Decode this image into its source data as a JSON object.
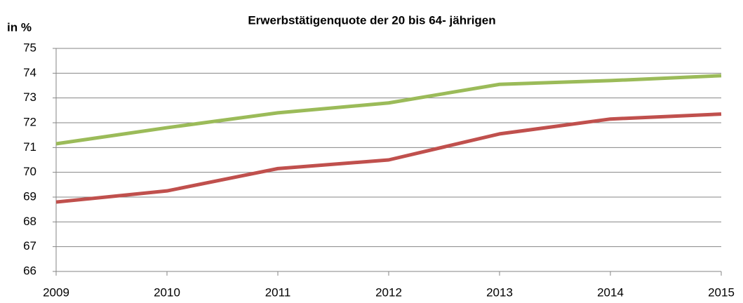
{
  "chart_data": {
    "type": "line",
    "title": "Erwerbstätigenquote der 20 bis 64- jährigen",
    "y_label": "in %",
    "x": [
      2009,
      2010,
      2011,
      2012,
      2013,
      2014,
      2015
    ],
    "xlim": [
      2009,
      2015
    ],
    "xticks": [
      2009,
      2010,
      2011,
      2012,
      2013,
      2014,
      2015
    ],
    "ylim": [
      66,
      75
    ],
    "yticks": [
      66,
      67,
      68,
      69,
      70,
      71,
      72,
      73,
      74,
      75
    ],
    "grid": true,
    "series": [
      {
        "color": "#9bbb59",
        "values": [
          71.15,
          71.8,
          72.4,
          72.8,
          73.55,
          73.7,
          73.9
        ]
      },
      {
        "color": "#c0504d",
        "values": [
          68.8,
          69.25,
          70.15,
          70.5,
          71.55,
          72.15,
          72.35
        ]
      }
    ]
  }
}
